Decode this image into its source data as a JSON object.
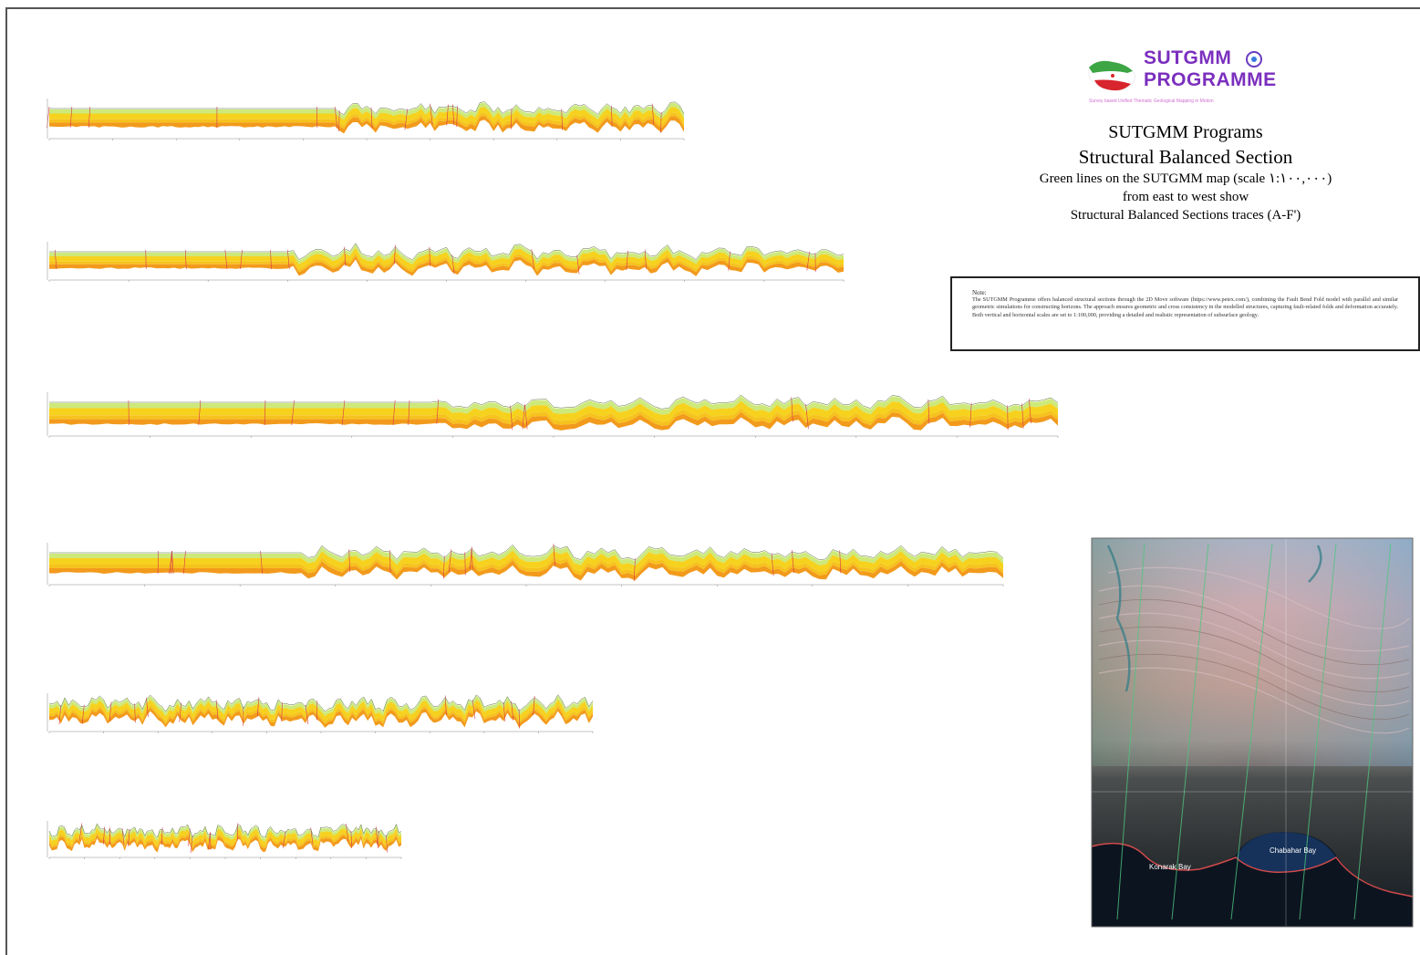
{
  "logo": {
    "line1": "SUTGMM",
    "line2": "PROGRAMME",
    "tagline": "Survey based Unified Thematic Geological Mapping in Motion",
    "emblem_icon": "sutgmm-emblem-icon",
    "flag_icon": "iran-flag-map-icon"
  },
  "title": {
    "line1": "SUTGMM Programs",
    "line2": "Structural Balanced Section",
    "line3": "Green lines on the SUTGMM map (scale ١:١٠٠,٠٠٠)",
    "line4": "from east to west show",
    "line5": "Structural Balanced Sections traces (A-F')"
  },
  "note": {
    "label": "Note:",
    "text": "The SUTGMM Programme offers balanced structural sections through the 2D Move software (https://www.petex.com/), combining the Fault Bend Fold model with parallel and similar geometric simulations for constructing horizons. The approach ensures geometric and cross consistency in the modelled structures, capturing fault-related folds and deformation accurately. Both vertical and horizontal scales are set to 1:100,000, providing a detailed and realistic representation of subsurface geology."
  },
  "map": {
    "label_1": "Konarak Bay",
    "label_2": "Chabahar Bay"
  },
  "colors": {
    "frame": "#555555",
    "logo_purple": "#7b2fbe",
    "layer_yellow": "#f6d21e",
    "layer_orange": "#f29a1c",
    "layer_green": "#cde97a",
    "fault_red": "#d9364a"
  }
}
